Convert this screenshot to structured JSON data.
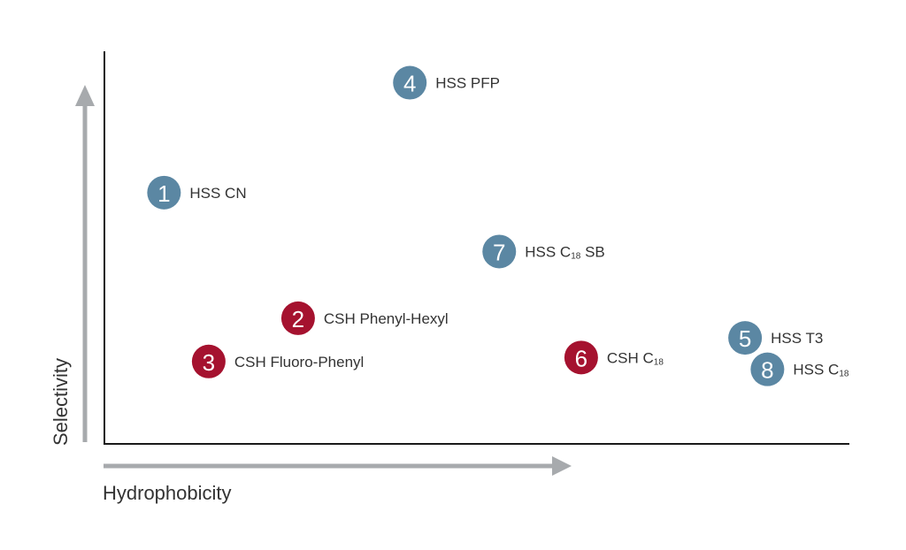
{
  "chart_data": {
    "type": "scatter",
    "title": "",
    "xlabel": "Hydrophobicity",
    "ylabel": "Selectivity",
    "grid": false,
    "legend": "none",
    "colors": {
      "hss": "#5b87a3",
      "csh": "#a5122f",
      "axis": "#1a1a1a",
      "arrow": "#a7aaad"
    },
    "points": [
      {
        "number": "1",
        "label": "HSS CN",
        "label_sub": "",
        "label_after": "",
        "family": "hss",
        "x": 0.08,
        "y": 0.64
      },
      {
        "number": "2",
        "label": "CSH Phenyl-Hexyl",
        "label_sub": "",
        "label_after": "",
        "family": "csh",
        "x": 0.26,
        "y": 0.32
      },
      {
        "number": "3",
        "label": "CSH Fluoro-Phenyl",
        "label_sub": "",
        "label_after": "",
        "family": "csh",
        "x": 0.14,
        "y": 0.21
      },
      {
        "number": "4",
        "label": "HSS PFP",
        "label_sub": "",
        "label_after": "",
        "family": "hss",
        "x": 0.41,
        "y": 0.92
      },
      {
        "number": "5",
        "label": "HSS T3",
        "label_sub": "",
        "label_after": "",
        "family": "hss",
        "x": 0.86,
        "y": 0.27
      },
      {
        "number": "6",
        "label": "CSH C",
        "label_sub": "18",
        "label_after": "",
        "family": "csh",
        "x": 0.64,
        "y": 0.22
      },
      {
        "number": "7",
        "label": "HSS C",
        "label_sub": "18",
        "label_after": " SB",
        "family": "hss",
        "x": 0.53,
        "y": 0.49
      },
      {
        "number": "8",
        "label": "HSS C",
        "label_sub": "18",
        "label_after": "",
        "family": "hss",
        "x": 0.89,
        "y": 0.19
      }
    ]
  }
}
